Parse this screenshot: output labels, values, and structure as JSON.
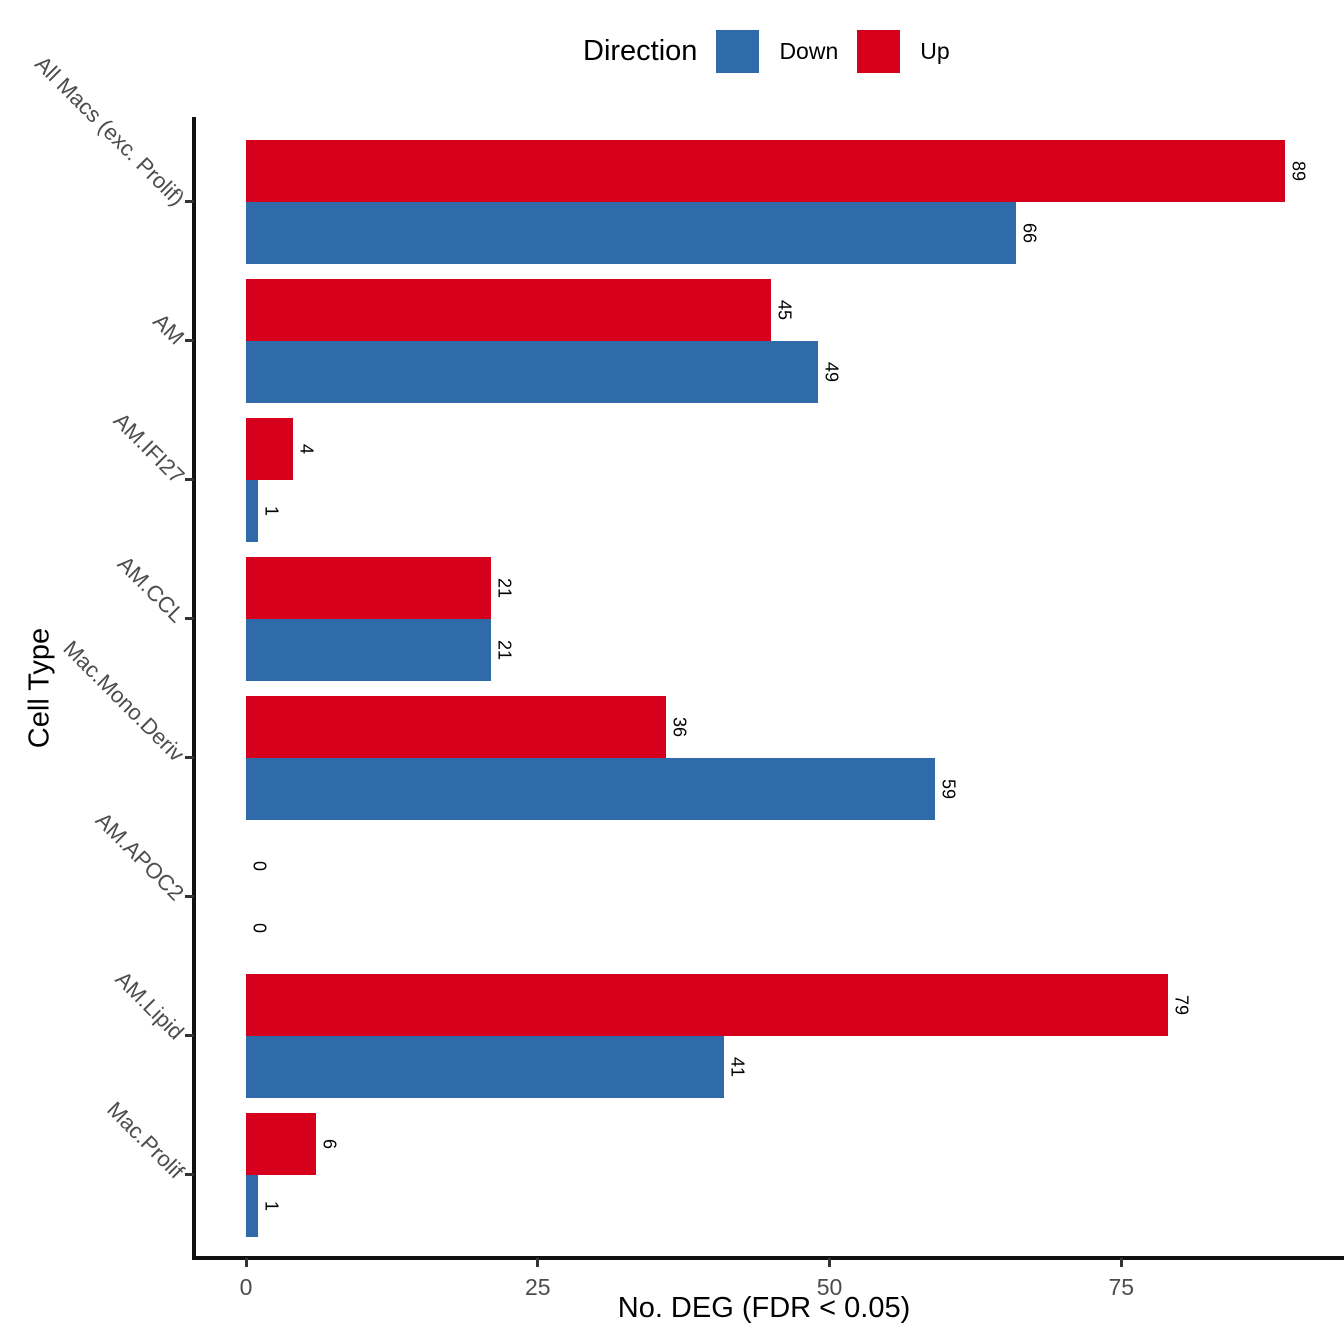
{
  "chart_data": {
    "type": "bar",
    "orientation": "horizontal",
    "xlabel": "No. DEG (FDR < 0.05)",
    "ylabel": "Cell Type",
    "legend_title": "Direction",
    "legend_position": "top-center",
    "categories": [
      "All Macs (exc. Prolif)",
      "AM",
      "AM.IFI27",
      "AM.CCL",
      "Mac.Mono.Deriv",
      "AM.APOC2",
      "AM.Lipid",
      "Mac.Prolif"
    ],
    "series": [
      {
        "name": "Down",
        "color": "#2E6BA8",
        "values": [
          66,
          49,
          1,
          21,
          59,
          0,
          41,
          1
        ]
      },
      {
        "name": "Up",
        "color": "#D6001C",
        "values": [
          89,
          45,
          4,
          21,
          36,
          0,
          79,
          6
        ]
      }
    ],
    "bar_value_labels": true,
    "xticks": [
      0,
      25,
      50,
      75
    ],
    "xlim": [
      0,
      93.5
    ],
    "grid": "off",
    "tick_label_color": "#4D4D4D",
    "axis_line_color": "#111111"
  }
}
